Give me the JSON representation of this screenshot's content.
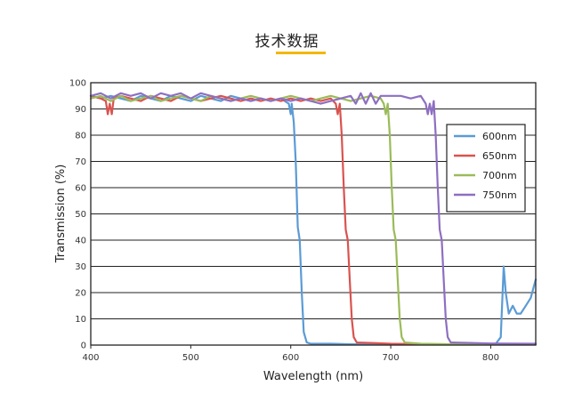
{
  "header": {
    "title": "技术数据"
  },
  "colors": {
    "accent": "#f2b705"
  },
  "chart_data": {
    "type": "line",
    "title": "",
    "xlabel": "Wavelength (nm)",
    "ylabel": "Transmission (%)",
    "xlim": [
      400,
      845
    ],
    "ylim": [
      0,
      100
    ],
    "xticks": [
      400,
      500,
      600,
      700,
      800
    ],
    "yticks": [
      0,
      10,
      20,
      30,
      40,
      50,
      60,
      70,
      80,
      90,
      100
    ],
    "grid": "horizontal",
    "legend_position": "top-right",
    "series": [
      {
        "name": "600nm",
        "color": "#5b9bd5",
        "points": [
          [
            400,
            95
          ],
          [
            410,
            94
          ],
          [
            420,
            95
          ],
          [
            430,
            94
          ],
          [
            440,
            93
          ],
          [
            450,
            95
          ],
          [
            460,
            94
          ],
          [
            470,
            93
          ],
          [
            480,
            95
          ],
          [
            490,
            94
          ],
          [
            500,
            93
          ],
          [
            510,
            95
          ],
          [
            520,
            94
          ],
          [
            530,
            93
          ],
          [
            540,
            95
          ],
          [
            550,
            94
          ],
          [
            560,
            93
          ],
          [
            570,
            94
          ],
          [
            580,
            93
          ],
          [
            590,
            94
          ],
          [
            598,
            92
          ],
          [
            600,
            88
          ],
          [
            601,
            92
          ],
          [
            603,
            85
          ],
          [
            605,
            70
          ],
          [
            607,
            45
          ],
          [
            609,
            40
          ],
          [
            611,
            20
          ],
          [
            613,
            5
          ],
          [
            616,
            1
          ],
          [
            620,
            0.5
          ],
          [
            640,
            0.5
          ],
          [
            660,
            0.3
          ],
          [
            700,
            0.2
          ],
          [
            760,
            0.2
          ],
          [
            805,
            0.5
          ],
          [
            810,
            3
          ],
          [
            813,
            30
          ],
          [
            815,
            20
          ],
          [
            818,
            12
          ],
          [
            822,
            15
          ],
          [
            826,
            12
          ],
          [
            830,
            12
          ],
          [
            835,
            15
          ],
          [
            840,
            18
          ],
          [
            845,
            25
          ]
        ]
      },
      {
        "name": "650nm",
        "color": "#d9534f",
        "points": [
          [
            400,
            95
          ],
          [
            410,
            94
          ],
          [
            415,
            93
          ],
          [
            417,
            88
          ],
          [
            419,
            92
          ],
          [
            421,
            88
          ],
          [
            423,
            94
          ],
          [
            430,
            95
          ],
          [
            440,
            94
          ],
          [
            450,
            93
          ],
          [
            460,
            95
          ],
          [
            470,
            94
          ],
          [
            480,
            93
          ],
          [
            490,
            95
          ],
          [
            500,
            94
          ],
          [
            510,
            93
          ],
          [
            520,
            94
          ],
          [
            530,
            95
          ],
          [
            540,
            94
          ],
          [
            550,
            93
          ],
          [
            560,
            94
          ],
          [
            570,
            93
          ],
          [
            580,
            94
          ],
          [
            590,
            93
          ],
          [
            600,
            94
          ],
          [
            610,
            93
          ],
          [
            620,
            94
          ],
          [
            630,
            93
          ],
          [
            640,
            94
          ],
          [
            645,
            92
          ],
          [
            647,
            88
          ],
          [
            649,
            92
          ],
          [
            651,
            80
          ],
          [
            653,
            60
          ],
          [
            655,
            44
          ],
          [
            657,
            40
          ],
          [
            659,
            25
          ],
          [
            661,
            10
          ],
          [
            663,
            3
          ],
          [
            666,
            1
          ],
          [
            680,
            0.8
          ],
          [
            700,
            0.5
          ],
          [
            720,
            0.4
          ],
          [
            760,
            0.3
          ],
          [
            845,
            0.3
          ]
        ]
      },
      {
        "name": "700nm",
        "color": "#9bbb59",
        "points": [
          [
            400,
            94
          ],
          [
            410,
            95
          ],
          [
            420,
            93
          ],
          [
            430,
            95
          ],
          [
            440,
            93
          ],
          [
            450,
            94
          ],
          [
            460,
            95
          ],
          [
            470,
            93
          ],
          [
            480,
            94
          ],
          [
            490,
            95
          ],
          [
            500,
            94
          ],
          [
            510,
            93
          ],
          [
            520,
            95
          ],
          [
            530,
            94
          ],
          [
            540,
            93
          ],
          [
            550,
            94
          ],
          [
            560,
            95
          ],
          [
            570,
            94
          ],
          [
            580,
            93
          ],
          [
            590,
            94
          ],
          [
            600,
            95
          ],
          [
            610,
            94
          ],
          [
            620,
            93
          ],
          [
            630,
            94
          ],
          [
            640,
            95
          ],
          [
            650,
            94
          ],
          [
            660,
            93
          ],
          [
            670,
            94
          ],
          [
            680,
            95
          ],
          [
            690,
            94
          ],
          [
            693,
            92
          ],
          [
            695,
            88
          ],
          [
            697,
            92
          ],
          [
            699,
            80
          ],
          [
            701,
            60
          ],
          [
            703,
            44
          ],
          [
            705,
            40
          ],
          [
            707,
            25
          ],
          [
            709,
            10
          ],
          [
            711,
            3
          ],
          [
            714,
            1
          ],
          [
            730,
            0.5
          ],
          [
            760,
            0.3
          ],
          [
            845,
            0.3
          ]
        ]
      },
      {
        "name": "750nm",
        "color": "#8e6fc1",
        "points": [
          [
            400,
            95
          ],
          [
            410,
            96
          ],
          [
            420,
            94
          ],
          [
            430,
            96
          ],
          [
            440,
            95
          ],
          [
            450,
            96
          ],
          [
            460,
            94
          ],
          [
            470,
            96
          ],
          [
            480,
            95
          ],
          [
            490,
            96
          ],
          [
            500,
            94
          ],
          [
            510,
            96
          ],
          [
            520,
            95
          ],
          [
            530,
            94
          ],
          [
            540,
            93
          ],
          [
            550,
            94
          ],
          [
            560,
            93
          ],
          [
            570,
            94
          ],
          [
            580,
            93
          ],
          [
            590,
            94
          ],
          [
            600,
            93
          ],
          [
            610,
            94
          ],
          [
            620,
            93
          ],
          [
            630,
            92
          ],
          [
            640,
            93
          ],
          [
            650,
            94
          ],
          [
            660,
            95
          ],
          [
            665,
            92
          ],
          [
            670,
            96
          ],
          [
            675,
            92
          ],
          [
            680,
            96
          ],
          [
            685,
            92
          ],
          [
            690,
            95
          ],
          [
            700,
            95
          ],
          [
            710,
            95
          ],
          [
            720,
            94
          ],
          [
            730,
            95
          ],
          [
            735,
            92
          ],
          [
            737,
            88
          ],
          [
            739,
            92
          ],
          [
            741,
            88
          ],
          [
            743,
            93
          ],
          [
            745,
            80
          ],
          [
            747,
            60
          ],
          [
            749,
            44
          ],
          [
            751,
            40
          ],
          [
            753,
            25
          ],
          [
            755,
            10
          ],
          [
            757,
            3
          ],
          [
            760,
            1
          ],
          [
            780,
            0.8
          ],
          [
            800,
            0.6
          ],
          [
            845,
            0.5
          ]
        ]
      }
    ]
  }
}
